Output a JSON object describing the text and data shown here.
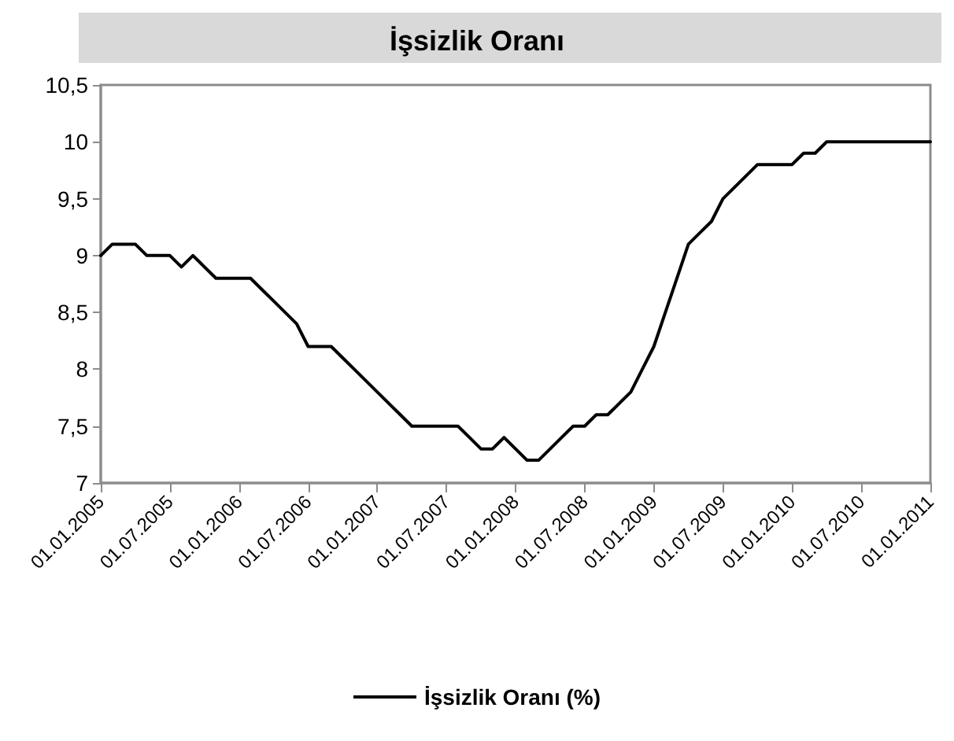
{
  "chart_data": {
    "type": "line",
    "title": "İşsizlik Oranı",
    "categories": [
      "01.01.2005",
      null,
      null,
      null,
      null,
      null,
      "01.07.2005",
      null,
      null,
      null,
      null,
      null,
      "01.01.2006",
      null,
      null,
      null,
      null,
      null,
      "01.07.2006",
      null,
      null,
      null,
      null,
      null,
      "01.01.2007",
      null,
      null,
      null,
      null,
      null,
      "01.07.2007",
      null,
      null,
      null,
      null,
      null,
      "01.01.2008",
      null,
      null,
      null,
      null,
      null,
      "01.07.2008",
      null,
      null,
      null,
      null,
      null,
      "01.01.2009",
      null,
      null,
      null,
      null,
      null,
      "01.07.2009",
      null,
      null,
      null,
      null,
      null,
      "01.01.2010",
      null,
      null,
      null,
      null,
      null,
      "01.07.2010",
      null,
      null,
      null,
      null,
      null,
      "01.01.2011"
    ],
    "series": [
      {
        "name": "İşsizlik Oranı (%)",
        "color": "#000000",
        "values": [
          9.0,
          9.1,
          9.1,
          9.1,
          9.0,
          9.0,
          9.0,
          8.9,
          9.0,
          8.9,
          8.8,
          8.8,
          8.8,
          8.8,
          8.7,
          8.6,
          8.5,
          8.4,
          8.2,
          8.2,
          8.2,
          8.1,
          8.0,
          7.9,
          7.8,
          7.7,
          7.6,
          7.5,
          7.5,
          7.5,
          7.5,
          7.5,
          7.4,
          7.3,
          7.3,
          7.4,
          7.3,
          7.2,
          7.2,
          7.3,
          7.4,
          7.5,
          7.5,
          7.6,
          7.6,
          7.7,
          7.8,
          8.0,
          8.2,
          8.5,
          8.8,
          9.1,
          9.2,
          9.3,
          9.5,
          9.6,
          9.7,
          9.8,
          9.8,
          9.8,
          9.8,
          9.9,
          9.9,
          10.0,
          10.0,
          10.0,
          10.0,
          10.0,
          10.0,
          10.0,
          10.0,
          10.0,
          10.0
        ]
      }
    ],
    "ylim": [
      7,
      10.5
    ],
    "yticks": [
      7,
      {
        "value": 7.5,
        "label": "7,5"
      },
      8,
      {
        "value": 8.5,
        "label": "8,5"
      },
      9,
      {
        "value": 9.5,
        "label": "9,5"
      },
      10,
      {
        "value": 10.5,
        "label": "10,5"
      }
    ],
    "grid": false,
    "legend": "bottom",
    "marker": "none",
    "line_style": "solid"
  }
}
